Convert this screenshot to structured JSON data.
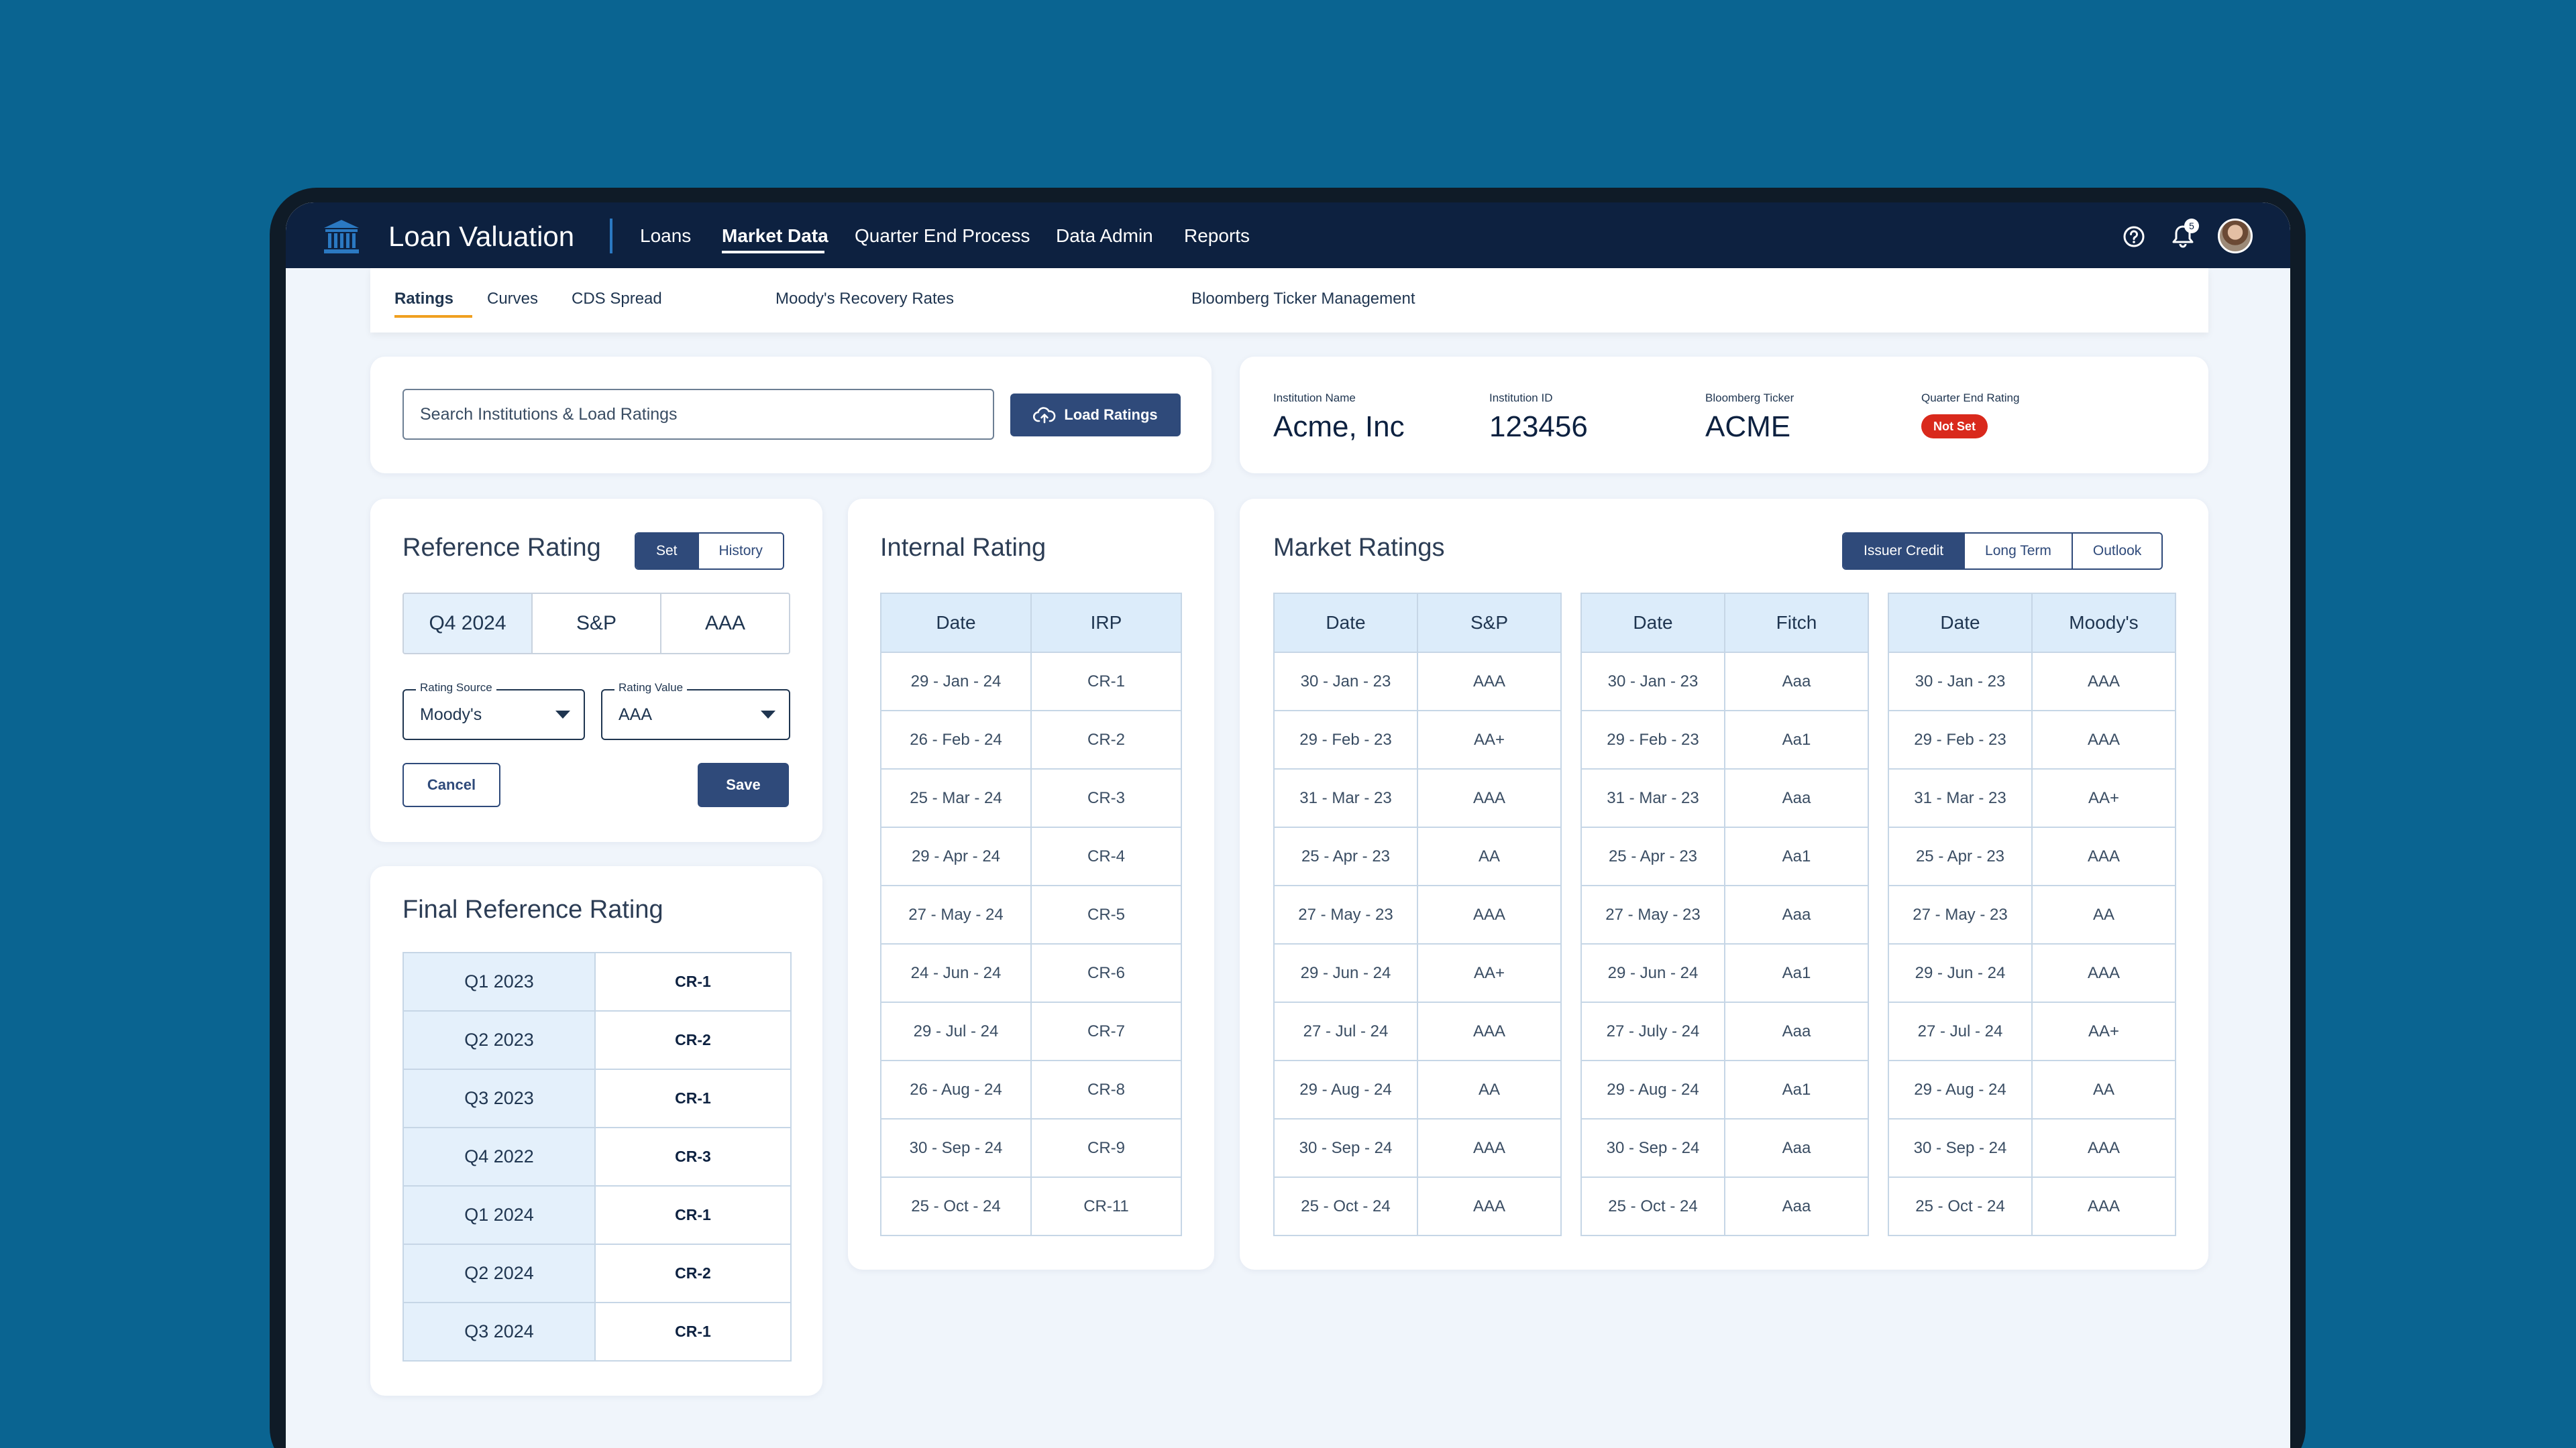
{
  "app": {
    "title": "Loan Valuation",
    "nav": [
      "Loans",
      "Market Data",
      "Quarter End Process",
      "Data Admin",
      "Reports"
    ],
    "active_nav": "Market Data",
    "notification_count": "5"
  },
  "subnav": {
    "items": [
      "Ratings",
      "Curves",
      "CDS Spread",
      "Moody's Recovery Rates",
      "Bloomberg Ticker Management"
    ],
    "active": "Ratings"
  },
  "search": {
    "placeholder": "Search Institutions & Load Ratings",
    "button_label": "Load Ratings"
  },
  "institution": {
    "name_label": "Institution Name",
    "name": "Acme, Inc",
    "id_label": "Institution ID",
    "id": "123456",
    "ticker_label": "Bloomberg Ticker",
    "ticker": "ACME",
    "qe_rating_label": "Quarter End Rating",
    "qe_rating": "Not Set"
  },
  "reference_rating": {
    "title": "Reference Rating",
    "toggle": [
      "Set",
      "History"
    ],
    "tiles": [
      "Q4 2024",
      "S&P",
      "AAA"
    ],
    "source_label": "Rating Source",
    "source_value": "Moody's",
    "value_label": "Rating Value",
    "value_value": "AAA",
    "cancel_label": "Cancel",
    "save_label": "Save"
  },
  "final_reference_rating": {
    "title": "Final Reference Rating",
    "rows": [
      {
        "quarter": "Q1 2023",
        "rating": "CR-1"
      },
      {
        "quarter": "Q2 2023",
        "rating": "CR-2"
      },
      {
        "quarter": "Q3 2023",
        "rating": "CR-1"
      },
      {
        "quarter": "Q4 2022",
        "rating": "CR-3"
      },
      {
        "quarter": "Q1 2024",
        "rating": "CR-1"
      },
      {
        "quarter": "Q2 2024",
        "rating": "CR-2"
      },
      {
        "quarter": "Q3 2024",
        "rating": "CR-1"
      }
    ]
  },
  "internal_rating": {
    "title": "Internal Rating",
    "headers": [
      "Date",
      "IRP"
    ],
    "rows": [
      [
        "29 - Jan - 24",
        "CR-1"
      ],
      [
        "26 - Feb - 24",
        "CR-2"
      ],
      [
        "25 - Mar - 24",
        "CR-3"
      ],
      [
        "29 - Apr - 24",
        "CR-4"
      ],
      [
        "27 - May - 24",
        "CR-5"
      ],
      [
        "24 - Jun - 24",
        "CR-6"
      ],
      [
        "29 - Jul - 24",
        "CR-7"
      ],
      [
        "26 - Aug - 24",
        "CR-8"
      ],
      [
        "30 - Sep - 24",
        "CR-9"
      ],
      [
        "25 - Oct - 24",
        "CR-11"
      ]
    ]
  },
  "market_ratings": {
    "title": "Market Ratings",
    "toggle": [
      "Issuer Credit",
      "Long Term",
      "Outlook"
    ],
    "sp": {
      "headers": [
        "Date",
        "S&P"
      ],
      "rows": [
        [
          "30 - Jan - 23",
          "AAA"
        ],
        [
          "29 - Feb - 23",
          "AA+"
        ],
        [
          "31 - Mar - 23",
          "AAA"
        ],
        [
          "25 - Apr - 23",
          "AA"
        ],
        [
          "27 - May - 23",
          "AAA"
        ],
        [
          "29 - Jun - 24",
          "AA+"
        ],
        [
          "27 - Jul - 24",
          "AAA"
        ],
        [
          "29 - Aug - 24",
          "AA"
        ],
        [
          "30 - Sep - 24",
          "AAA"
        ],
        [
          "25 - Oct - 24",
          "AAA"
        ]
      ]
    },
    "fitch": {
      "headers": [
        "Date",
        "Fitch"
      ],
      "rows": [
        [
          "30 - Jan - 23",
          "Aaa"
        ],
        [
          "29 - Feb - 23",
          "Aa1"
        ],
        [
          "31 - Mar - 23",
          "Aaa"
        ],
        [
          "25 - Apr - 23",
          "Aa1"
        ],
        [
          "27 - May - 23",
          "Aaa"
        ],
        [
          "29 - Jun - 24",
          "Aa1"
        ],
        [
          "27 - July - 24",
          "Aaa"
        ],
        [
          "29 - Aug - 24",
          "Aa1"
        ],
        [
          "30 - Sep - 24",
          "Aaa"
        ],
        [
          "25 - Oct - 24",
          "Aaa"
        ]
      ]
    },
    "moodys": {
      "headers": [
        "Date",
        "Moody's"
      ],
      "rows": [
        [
          "30 - Jan - 23",
          "AAA"
        ],
        [
          "29 - Feb - 23",
          "AAA"
        ],
        [
          "31 - Mar - 23",
          "AA+"
        ],
        [
          "25 - Apr - 23",
          "AAA"
        ],
        [
          "27 - May - 23",
          "AA"
        ],
        [
          "29 - Jun - 24",
          "AAA"
        ],
        [
          "27 - Jul - 24",
          "AA+"
        ],
        [
          "29 - Aug - 24",
          "AA"
        ],
        [
          "30 - Sep - 24",
          "AAA"
        ],
        [
          "25 - Oct - 24",
          "AAA"
        ]
      ]
    }
  }
}
